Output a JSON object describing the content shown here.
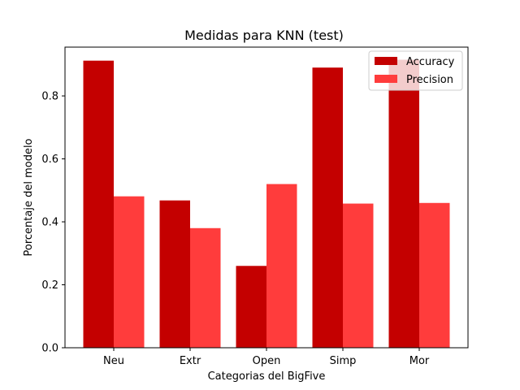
{
  "chart_data": {
    "type": "bar",
    "title": "Medidas para KNN (test)",
    "xlabel": "Categorias del BigFive",
    "ylabel": "Porcentaje del modelo",
    "categories": [
      "Neu",
      "Extr",
      "Open",
      "Simp",
      "Mor"
    ],
    "series": [
      {
        "name": "Accuracy",
        "color": "#c40000",
        "values": [
          0.912,
          0.468,
          0.26,
          0.89,
          0.915
        ]
      },
      {
        "name": "Precision",
        "color": "#ff3c3c",
        "values": [
          0.481,
          0.38,
          0.52,
          0.458,
          0.46
        ]
      }
    ],
    "ylim": [
      0,
      0.955
    ],
    "yticks": [
      "0.0",
      "0.2",
      "0.4",
      "0.6",
      "0.8"
    ],
    "ytick_values": [
      0,
      0.2,
      0.4,
      0.6,
      0.8
    ],
    "legend": "top-right",
    "grid": false
  }
}
